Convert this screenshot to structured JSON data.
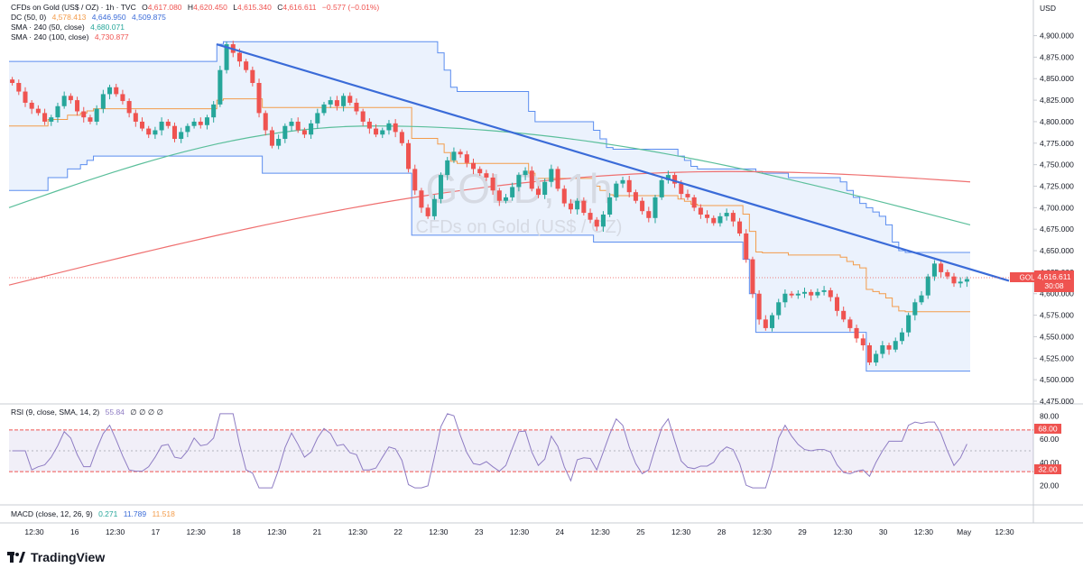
{
  "header": {
    "title": "CFDs on Gold (US$ / OZ) · 1h · TVC",
    "o_label": "O",
    "o": "4,617.080",
    "h_label": "H",
    "h": "4,620.450",
    "l_label": "L",
    "l": "4,615.340",
    "c_label": "C",
    "c": "4,616.611",
    "change": "−0.577 (−0.01%)"
  },
  "indicators": {
    "dc": {
      "label": "DC (50, 0)",
      "v1": "4,578.413",
      "v2": "4,646.950",
      "v3": "4,509.875"
    },
    "sma50": {
      "label": "SMA · 240 (50, close)",
      "value": "4,680.071"
    },
    "sma100": {
      "label": "SMA · 240 (100, close)",
      "value": "4,730.877"
    },
    "rsi": {
      "label": "RSI (9, close, SMA, 14, 2)",
      "value": "55.84",
      "extra": "∅ ∅ ∅ ∅"
    },
    "macd": {
      "label": "MACD (close, 12, 26, 9)",
      "v1": "0.271",
      "v2": "11.789",
      "v3": "11.518"
    }
  },
  "price_axis": {
    "currency": "USD",
    "ticks": [
      "4,900.000",
      "4,875.000",
      "4,850.000",
      "4,825.000",
      "4,800.000",
      "4,775.000",
      "4,750.000",
      "4,725.000",
      "4,700.000",
      "4,675.000",
      "4,650.000",
      "4,625.000",
      "4,600.000",
      "4,575.000",
      "4,550.000",
      "4,525.000",
      "4,500.000",
      "4,475.000"
    ],
    "current_symbol": "GOLD",
    "current_price": "4,616.611",
    "countdown": "30:08"
  },
  "rsi_axis": {
    "ticks": [
      "80.00",
      "60.00",
      "40.00",
      "20.00"
    ],
    "upper_badge": "68.00",
    "lower_badge": "32.00"
  },
  "time_axis": {
    "labels": [
      "12:30",
      "16",
      "12:30",
      "17",
      "12:30",
      "18",
      "12:30",
      "21",
      "12:30",
      "22",
      "12:30",
      "23",
      "12:30",
      "24",
      "12:30",
      "25",
      "12:30",
      "28",
      "12:30",
      "29",
      "12:30",
      "30",
      "12:30",
      "May",
      "12:30"
    ]
  },
  "watermark": {
    "symbol": "GOLD, 1h",
    "name": "CFDs on Gold (US$ / OZ)"
  },
  "brand": {
    "name": "TradingView"
  },
  "colors": {
    "up": "#26a69a",
    "down": "#ef5350",
    "trendline": "#3a6bd8",
    "dc_band": "#5b8def",
    "dc_mid": "#f39c4b",
    "sma50": "#5bbf9b",
    "sma100": "#ef7070",
    "rsi": "#8e7cc3"
  },
  "chart_data": {
    "type": "candlestick",
    "series": [
      {
        "name": "CFDs on Gold (US$ / OZ)",
        "values": [
          4845,
          4835,
          4822,
          4815,
          4810,
          4800,
          4805,
          4818,
          4830,
          4825,
          4812,
          4805,
          4800,
          4815,
          4832,
          4840,
          4832,
          4824,
          4810,
          4800,
          4792,
          4785,
          4790,
          4800,
          4795,
          4780,
          4788,
          4795,
          4800,
          4796,
          4805,
          4820,
          4860,
          4890,
          4880,
          4870,
          4860,
          4845,
          4810,
          4790,
          4772,
          4780,
          4795,
          4800,
          4790,
          4785,
          4798,
          4810,
          4820,
          4825,
          4818,
          4830,
          4822,
          4812,
          4800,
          4792,
          4785,
          4790,
          4798,
          4788,
          4775,
          4745,
          4720,
          4700,
          4690,
          4710,
          4738,
          4755,
          4765,
          4762,
          4752,
          4745,
          4740,
          4735,
          4720,
          4708,
          4712,
          4724,
          4738,
          4743,
          4722,
          4715,
          4730,
          4745,
          4722,
          4705,
          4698,
          4708,
          4694,
          4686,
          4678,
          4692,
          4712,
          4728,
          4732,
          4718,
          4708,
          4696,
          4688,
          4712,
          4732,
          4738,
          4728,
          4716,
          4712,
          4700,
          4692,
          4688,
          4682,
          4690,
          4694,
          4684,
          4670,
          4640,
          4600,
          4570,
          4560,
          4575,
          4590,
          4600,
          4598,
          4600,
          4602,
          4598,
          4602,
          4604,
          4596,
          4580,
          4570,
          4560,
          4548,
          4540,
          4520,
          4530,
          4540,
          4535,
          4545,
          4555,
          4575,
          4590,
          4598,
          4620,
          4635,
          4625,
          4620,
          4612,
          4614,
          4617
        ]
      }
    ],
    "ylim": [
      4475,
      4910
    ],
    "trendline": {
      "start": [
        18,
        4890
      ],
      "end": [
        1,
        4615
      ]
    },
    "donchian": {
      "upper": [
        4870,
        4870,
        4870,
        4870,
        4870,
        4870,
        4870,
        4870,
        4870,
        4870,
        4870,
        4870,
        4870,
        4870,
        4870,
        4870,
        4870,
        4870,
        4870,
        4870,
        4870,
        4870,
        4870,
        4870,
        4870,
        4870,
        4870,
        4870,
        4870,
        4870,
        4870,
        4870,
        4890,
        4893,
        4893,
        4893,
        4893,
        4893,
        4893,
        4893,
        4893,
        4893,
        4893,
        4893,
        4893,
        4893,
        4893,
        4893,
        4893,
        4893,
        4893,
        4893,
        4893,
        4893,
        4893,
        4893,
        4893,
        4893,
        4893,
        4893,
        4893,
        4893,
        4893,
        4893,
        4893,
        4893,
        4880,
        4860,
        4840,
        4835,
        4835,
        4835,
        4835,
        4835,
        4835,
        4835,
        4835,
        4835,
        4835,
        4835,
        4812,
        4800,
        4800,
        4800,
        4800,
        4800,
        4800,
        4800,
        4800,
        4800,
        4790,
        4780,
        4770,
        4768,
        4768,
        4768,
        4768,
        4768,
        4768,
        4768,
        4768,
        4768,
        4768,
        4760,
        4755,
        4748,
        4745,
        4745,
        4745,
        4745,
        4745,
        4745,
        4745,
        4745,
        4745,
        4742,
        4740,
        4740,
        4740,
        4740,
        4735,
        4735,
        4735,
        4735,
        4735,
        4735,
        4735,
        4735,
        4730,
        4720,
        4712,
        4705,
        4700,
        4695,
        4690,
        4680,
        4660,
        4650,
        4648,
        4648,
        4648,
        4648,
        4648,
        4648,
        4648,
        4648,
        4648,
        4648
      ],
      "lower": [
        4720,
        4720,
        4720,
        4720,
        4720,
        4720,
        4735,
        4735,
        4735,
        4745,
        4745,
        4750,
        4755,
        4760,
        4760,
        4760,
        4760,
        4760,
        4760,
        4760,
        4760,
        4760,
        4760,
        4760,
        4760,
        4760,
        4760,
        4760,
        4760,
        4760,
        4760,
        4760,
        4760,
        4760,
        4760,
        4760,
        4760,
        4760,
        4760,
        4740,
        4740,
        4740,
        4740,
        4740,
        4740,
        4740,
        4740,
        4740,
        4740,
        4740,
        4740,
        4740,
        4740,
        4740,
        4740,
        4740,
        4740,
        4740,
        4740,
        4740,
        4740,
        4740,
        4668,
        4668,
        4668,
        4668,
        4668,
        4668,
        4668,
        4668,
        4668,
        4668,
        4668,
        4668,
        4668,
        4668,
        4668,
        4668,
        4668,
        4668,
        4668,
        4668,
        4668,
        4668,
        4668,
        4668,
        4668,
        4668,
        4668,
        4668,
        4660,
        4660,
        4660,
        4660,
        4660,
        4660,
        4660,
        4660,
        4660,
        4660,
        4660,
        4660,
        4660,
        4660,
        4660,
        4660,
        4660,
        4660,
        4660,
        4660,
        4660,
        4660,
        4660,
        4640,
        4600,
        4555,
        4555,
        4555,
        4555,
        4555,
        4555,
        4555,
        4555,
        4555,
        4555,
        4555,
        4555,
        4555,
        4555,
        4555,
        4555,
        4555,
        4510,
        4510,
        4510,
        4510,
        4510,
        4510,
        4510,
        4510,
        4510,
        4510,
        4510,
        4510,
        4510,
        4510,
        4510,
        4510
      ]
    },
    "sma50": {
      "start": 4700,
      "peak": 4795,
      "end": 4680
    },
    "sma100": {
      "start": 4610,
      "peak": 4742,
      "end": 4730
    },
    "rsi": {
      "overbought": 68,
      "oversold": 32,
      "last": 55.84
    }
  }
}
